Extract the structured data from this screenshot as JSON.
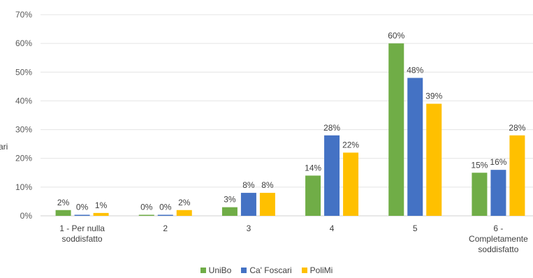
{
  "chart_data": {
    "type": "bar",
    "categories": [
      [
        "1 - Per nulla",
        "soddisfatto"
      ],
      [
        "2"
      ],
      [
        "3"
      ],
      [
        "4"
      ],
      [
        "5"
      ],
      [
        "6 -",
        "Completamente",
        "soddisfatto"
      ]
    ],
    "series": [
      {
        "name": "UniBo",
        "color": "#70AD47",
        "values": [
          2,
          0,
          3,
          14,
          60,
          15
        ]
      },
      {
        "name": "Ca' Foscari",
        "color": "#4472C4",
        "values": [
          0,
          0,
          8,
          28,
          48,
          16
        ]
      },
      {
        "name": "PoliMi",
        "color": "#FFC000",
        "values": [
          1,
          2,
          8,
          22,
          39,
          28
        ]
      }
    ],
    "ylim": [
      0,
      70
    ],
    "yticks": [
      "0%",
      "10%",
      "20%",
      "30%",
      "40%",
      "50%",
      "60%",
      "70%"
    ],
    "grid": true,
    "legend_position": "bottom",
    "clipped_left_text": "ari"
  }
}
